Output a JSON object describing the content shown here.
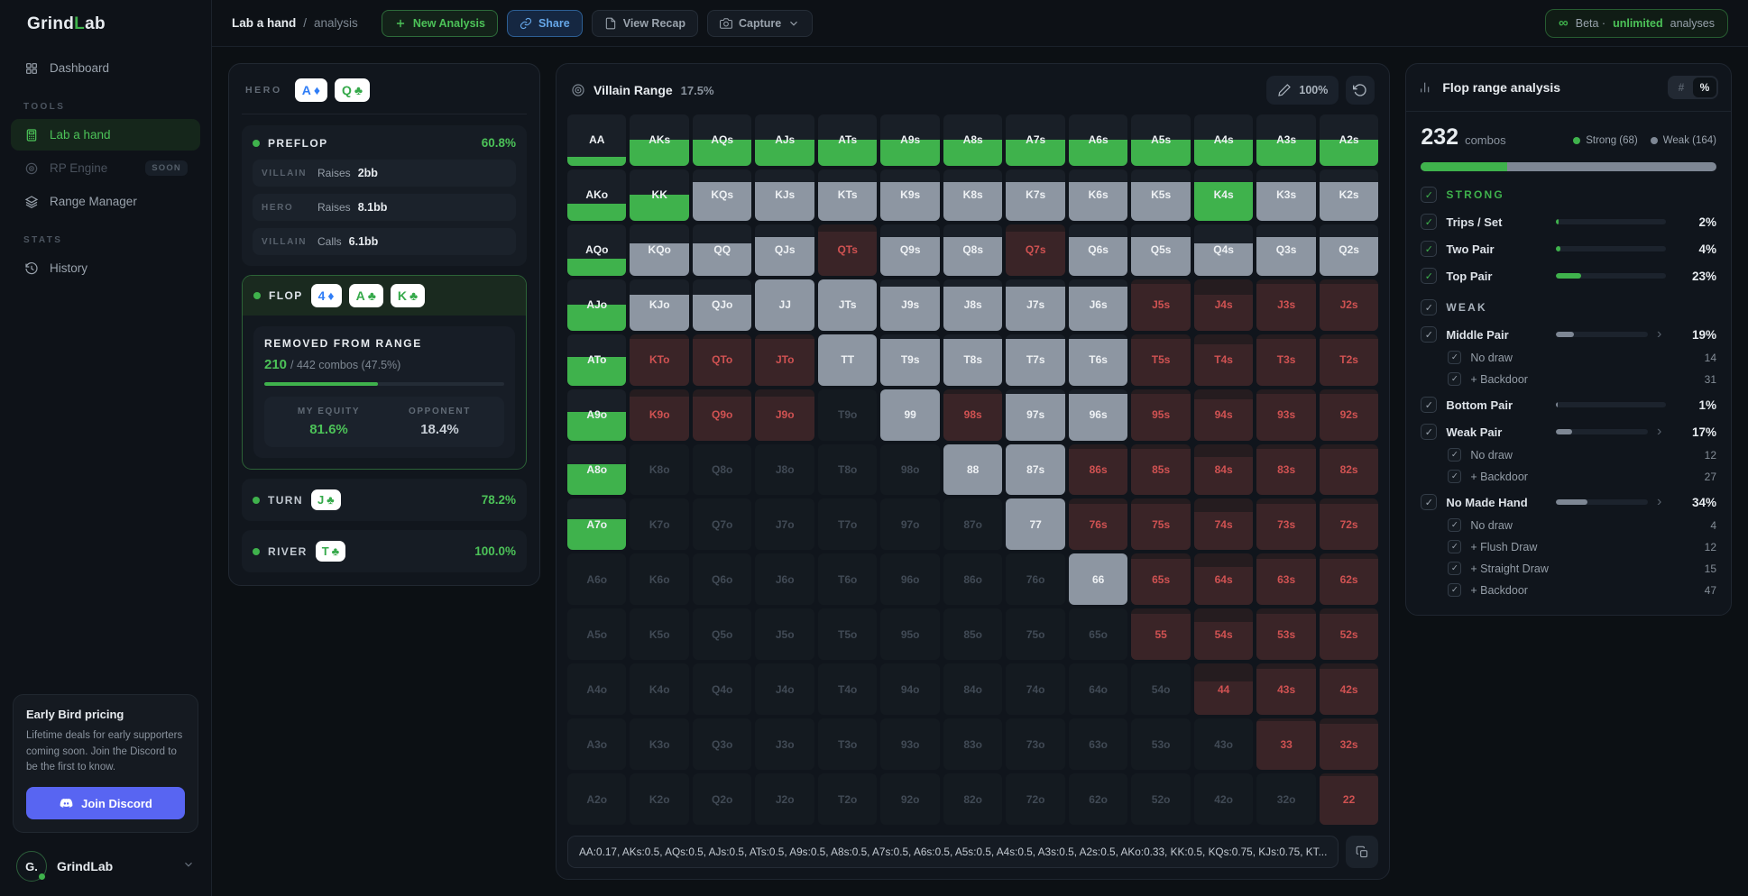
{
  "colors": {
    "accent_green": "#3fb24c",
    "weak_gray": "#7e8794",
    "removed_red": "#d05252",
    "suit_blue": "#2f7df6",
    "suit_green": "#35a94a",
    "discord": "#5865f2"
  },
  "topbar": {
    "logo": {
      "part1": "Grind",
      "part2": "L",
      "part3": "ab"
    },
    "breadcrumb": {
      "current": "Lab a hand",
      "sep": "/",
      "page": "analysis"
    },
    "new_analysis_label": "New Analysis",
    "share_label": "Share",
    "view_recap_label": "View Recap",
    "capture_label": "Capture",
    "beta_badge": {
      "infinity": "∞",
      "prefix": "Beta ·",
      "highlight": "unlimited",
      "suffix": "analyses"
    }
  },
  "sidebar": {
    "dashboard_label": "Dashboard",
    "sections": [
      {
        "title": "TOOLS",
        "items": [
          {
            "label": "Lab a hand",
            "icon": "calculator-icon",
            "active": true
          },
          {
            "label": "RP Engine",
            "icon": "target-icon",
            "disabled": true,
            "badge": "SOON"
          },
          {
            "label": "Range Manager",
            "icon": "layers-icon"
          }
        ]
      },
      {
        "title": "STATS",
        "items": [
          {
            "label": "History",
            "icon": "history-icon"
          }
        ]
      }
    ],
    "promo": {
      "title": "Early Bird pricing",
      "body": "Lifetime deals for early supporters coming soon. Join the Discord to be the first to know.",
      "cta": "Join Discord"
    },
    "footer": {
      "brand": "GrindLab",
      "avatar_text": "G."
    }
  },
  "hand_panel": {
    "hero_label": "HERO",
    "hero_cards": [
      {
        "rank": "A",
        "suit": "♦",
        "color": "#2f7df6"
      },
      {
        "rank": "Q",
        "suit": "♣",
        "color": "#35a94a"
      }
    ],
    "stages": {
      "preflop": {
        "label": "PREFLOP",
        "value": "60.8%",
        "actions": [
          {
            "who": "VILLAIN",
            "verb": "Raises",
            "amount": "2bb"
          },
          {
            "who": "HERO",
            "verb": "Raises",
            "amount": "8.1bb"
          },
          {
            "who": "VILLAIN",
            "verb": "Calls",
            "amount": "6.1bb"
          }
        ]
      },
      "flop": {
        "label": "FLOP",
        "cards": [
          {
            "rank": "4",
            "suit": "♦",
            "color": "#2f7df6"
          },
          {
            "rank": "A",
            "suit": "♣",
            "color": "#35a94a"
          },
          {
            "rank": "K",
            "suit": "♣",
            "color": "#35a94a"
          }
        ],
        "removed_title": "REMOVED FROM RANGE",
        "removed_count": "210",
        "removed_detail": "/ 442 combos (47.5%)",
        "removed_pct": 47.5,
        "my_equity_label": "MY EQUITY",
        "my_equity": "81.6%",
        "opponent_label": "OPPONENT",
        "opponent_equity": "18.4%"
      },
      "turn": {
        "label": "TURN",
        "card": {
          "rank": "J",
          "suit": "♣",
          "color": "#35a94a"
        },
        "value": "78.2%"
      },
      "river": {
        "label": "RIVER",
        "card": {
          "rank": "T",
          "suit": "♣",
          "color": "#35a94a"
        },
        "value": "100.0%"
      }
    }
  },
  "villain_range": {
    "title": "Villain Range",
    "percent": "17.5%",
    "zoom": "100%",
    "weights_string": "AA:0.17, AKs:0.5, AQs:0.5, AJs:0.5, ATs:0.5, A9s:0.5, A8s:0.5, A7s:0.5, A6s:0.5, A5s:0.5, A4s:0.5, A3s:0.5, A2s:0.5, AKo:0.33, KK:0.5, KQs:0.75, KJs:0.75, KT...",
    "matrix": [
      [
        [
          "AA",
          "g",
          0.17
        ],
        [
          "AKs",
          "g",
          0.5
        ],
        [
          "AQs",
          "g",
          0.5
        ],
        [
          "AJs",
          "g",
          0.5
        ],
        [
          "ATs",
          "g",
          0.5
        ],
        [
          "A9s",
          "g",
          0.5
        ],
        [
          "A8s",
          "g",
          0.5
        ],
        [
          "A7s",
          "g",
          0.5
        ],
        [
          "A6s",
          "g",
          0.5
        ],
        [
          "A5s",
          "g",
          0.5
        ],
        [
          "A4s",
          "g",
          0.5
        ],
        [
          "A3s",
          "g",
          0.5
        ],
        [
          "A2s",
          "g",
          0.5
        ]
      ],
      [
        [
          "AKo",
          "g",
          0.33
        ],
        [
          "KK",
          "g",
          0.5
        ],
        [
          "KQs",
          "w",
          0.75
        ],
        [
          "KJs",
          "w",
          0.75
        ],
        [
          "KTs",
          "w",
          0.75
        ],
        [
          "K9s",
          "w",
          0.75
        ],
        [
          "K8s",
          "w",
          0.75
        ],
        [
          "K7s",
          "w",
          0.75
        ],
        [
          "K6s",
          "w",
          0.75
        ],
        [
          "K5s",
          "w",
          0.75
        ],
        [
          "K4s",
          "g",
          0.75
        ],
        [
          "K3s",
          "w",
          0.75
        ],
        [
          "K2s",
          "w",
          0.75
        ]
      ],
      [
        [
          "AQo",
          "g",
          0.33
        ],
        [
          "KQo",
          "w",
          0.62
        ],
        [
          "QQ",
          "w",
          0.62
        ],
        [
          "QJs",
          "w",
          0.75
        ],
        [
          "QTs",
          "r",
          0.85
        ],
        [
          "Q9s",
          "w",
          0.75
        ],
        [
          "Q8s",
          "w",
          0.75
        ],
        [
          "Q7s",
          "r",
          0.85
        ],
        [
          "Q6s",
          "w",
          0.75
        ],
        [
          "Q5s",
          "w",
          0.75
        ],
        [
          "Q4s",
          "w",
          0.62
        ],
        [
          "Q3s",
          "w",
          0.75
        ],
        [
          "Q2s",
          "w",
          0.75
        ]
      ],
      [
        [
          "AJo",
          "g",
          0.5
        ],
        [
          "KJo",
          "w",
          0.7
        ],
        [
          "QJo",
          "w",
          0.7
        ],
        [
          "JJ",
          "w",
          1
        ],
        [
          "JTs",
          "w",
          1
        ],
        [
          "J9s",
          "w",
          0.85
        ],
        [
          "J8s",
          "w",
          0.85
        ],
        [
          "J7s",
          "w",
          0.85
        ],
        [
          "J6s",
          "w",
          0.85
        ],
        [
          "J5s",
          "r",
          0.9
        ],
        [
          "J4s",
          "r",
          0.7
        ],
        [
          "J3s",
          "r",
          0.9
        ],
        [
          "J2s",
          "r",
          0.9
        ]
      ],
      [
        [
          "ATo",
          "g",
          0.55
        ],
        [
          "KTo",
          "r",
          0.9
        ],
        [
          "QTo",
          "r",
          0.9
        ],
        [
          "JTo",
          "r",
          0.9
        ],
        [
          "TT",
          "w",
          1
        ],
        [
          "T9s",
          "w",
          0.9
        ],
        [
          "T8s",
          "w",
          0.9
        ],
        [
          "T7s",
          "w",
          0.9
        ],
        [
          "T6s",
          "w",
          0.9
        ],
        [
          "T5s",
          "r",
          0.9
        ],
        [
          "T4s",
          "r",
          0.8
        ],
        [
          "T3s",
          "r",
          0.9
        ],
        [
          "T2s",
          "r",
          0.9
        ]
      ],
      [
        [
          "A9o",
          "g",
          0.55
        ],
        [
          "K9o",
          "r",
          0.85
        ],
        [
          "Q9o",
          "r",
          0.85
        ],
        [
          "J9o",
          "r",
          0.85
        ],
        [
          "T9o",
          "n",
          0
        ],
        [
          "99",
          "w",
          1
        ],
        [
          "98s",
          "r",
          0.9
        ],
        [
          "97s",
          "w",
          0.9
        ],
        [
          "96s",
          "w",
          0.9
        ],
        [
          "95s",
          "r",
          0.9
        ],
        [
          "94s",
          "r",
          0.8
        ],
        [
          "93s",
          "r",
          0.9
        ],
        [
          "92s",
          "r",
          0.9
        ]
      ],
      [
        [
          "A8o",
          "g",
          0.6
        ],
        [
          "K8o",
          "n",
          0
        ],
        [
          "Q8o",
          "n",
          0
        ],
        [
          "J8o",
          "n",
          0
        ],
        [
          "T8o",
          "n",
          0
        ],
        [
          "98o",
          "n",
          0
        ],
        [
          "88",
          "w",
          1
        ],
        [
          "87s",
          "w",
          1
        ],
        [
          "86s",
          "r",
          0.9
        ],
        [
          "85s",
          "r",
          0.9
        ],
        [
          "84s",
          "r",
          0.75
        ],
        [
          "83s",
          "r",
          0.9
        ],
        [
          "82s",
          "r",
          0.9
        ]
      ],
      [
        [
          "A7o",
          "g",
          0.6
        ],
        [
          "K7o",
          "n",
          0
        ],
        [
          "Q7o",
          "n",
          0
        ],
        [
          "J7o",
          "n",
          0
        ],
        [
          "T7o",
          "n",
          0
        ],
        [
          "97o",
          "n",
          0
        ],
        [
          "87o",
          "n",
          0
        ],
        [
          "77",
          "w",
          1
        ],
        [
          "76s",
          "r",
          0.9
        ],
        [
          "75s",
          "r",
          0.9
        ],
        [
          "74s",
          "r",
          0.75
        ],
        [
          "73s",
          "r",
          0.9
        ],
        [
          "72s",
          "r",
          0.9
        ]
      ],
      [
        [
          "A6o",
          "n",
          0
        ],
        [
          "K6o",
          "n",
          0
        ],
        [
          "Q6o",
          "n",
          0
        ],
        [
          "J6o",
          "n",
          0
        ],
        [
          "T6o",
          "n",
          0
        ],
        [
          "96o",
          "n",
          0
        ],
        [
          "86o",
          "n",
          0
        ],
        [
          "76o",
          "n",
          0
        ],
        [
          "66",
          "w",
          1
        ],
        [
          "65s",
          "r",
          0.9
        ],
        [
          "64s",
          "r",
          0.75
        ],
        [
          "63s",
          "r",
          0.9
        ],
        [
          "62s",
          "r",
          0.9
        ]
      ],
      [
        [
          "A5o",
          "n",
          0
        ],
        [
          "K5o",
          "n",
          0
        ],
        [
          "Q5o",
          "n",
          0
        ],
        [
          "J5o",
          "n",
          0
        ],
        [
          "T5o",
          "n",
          0
        ],
        [
          "95o",
          "n",
          0
        ],
        [
          "85o",
          "n",
          0
        ],
        [
          "75o",
          "n",
          0
        ],
        [
          "65o",
          "n",
          0
        ],
        [
          "55",
          "r",
          0.9
        ],
        [
          "54s",
          "r",
          0.75
        ],
        [
          "53s",
          "r",
          0.9
        ],
        [
          "52s",
          "r",
          0.9
        ]
      ],
      [
        [
          "A4o",
          "n",
          0
        ],
        [
          "K4o",
          "n",
          0
        ],
        [
          "Q4o",
          "n",
          0
        ],
        [
          "J4o",
          "n",
          0
        ],
        [
          "T4o",
          "n",
          0
        ],
        [
          "94o",
          "n",
          0
        ],
        [
          "84o",
          "n",
          0
        ],
        [
          "74o",
          "n",
          0
        ],
        [
          "64o",
          "n",
          0
        ],
        [
          "54o",
          "n",
          0
        ],
        [
          "44",
          "r",
          0.65
        ],
        [
          "43s",
          "r",
          0.9
        ],
        [
          "42s",
          "r",
          0.9
        ]
      ],
      [
        [
          "A3o",
          "n",
          0
        ],
        [
          "K3o",
          "n",
          0
        ],
        [
          "Q3o",
          "n",
          0
        ],
        [
          "J3o",
          "n",
          0
        ],
        [
          "T3o",
          "n",
          0
        ],
        [
          "93o",
          "n",
          0
        ],
        [
          "83o",
          "n",
          0
        ],
        [
          "73o",
          "n",
          0
        ],
        [
          "63o",
          "n",
          0
        ],
        [
          "53o",
          "n",
          0
        ],
        [
          "43o",
          "n",
          0
        ],
        [
          "33",
          "r",
          0.95
        ],
        [
          "32s",
          "r",
          0.9
        ]
      ],
      [
        [
          "A2o",
          "n",
          0
        ],
        [
          "K2o",
          "n",
          0
        ],
        [
          "Q2o",
          "n",
          0
        ],
        [
          "J2o",
          "n",
          0
        ],
        [
          "T2o",
          "n",
          0
        ],
        [
          "92o",
          "n",
          0
        ],
        [
          "82o",
          "n",
          0
        ],
        [
          "72o",
          "n",
          0
        ],
        [
          "62o",
          "n",
          0
        ],
        [
          "52o",
          "n",
          0
        ],
        [
          "42o",
          "n",
          0
        ],
        [
          "32o",
          "n",
          0
        ],
        [
          "22",
          "r",
          0.95
        ]
      ]
    ]
  },
  "analysis_panel": {
    "title": "Flop range analysis",
    "toggle": {
      "count": "#",
      "percent": "%"
    },
    "combos": "232",
    "combos_label": "combos",
    "strong_pct": 29.3,
    "legend": [
      {
        "label": "Strong (68)",
        "color": "#3fb24c"
      },
      {
        "label": "Weak (164)",
        "color": "#7e8794"
      }
    ],
    "sections": [
      {
        "title": "STRONG",
        "color": "green",
        "items": [
          {
            "label": "Trips / Set",
            "pct": 2,
            "value": "2%"
          },
          {
            "label": "Two Pair",
            "pct": 4,
            "value": "4%"
          },
          {
            "label": "Top Pair",
            "pct": 23,
            "value": "23%"
          }
        ]
      },
      {
        "title": "WEAK",
        "color": "gray",
        "items": [
          {
            "label": "Middle Pair",
            "pct": 19,
            "value": "19%",
            "expandable": true,
            "subs": [
              {
                "label": "No draw",
                "value": "14"
              },
              {
                "label": "+ Backdoor",
                "value": "31"
              }
            ]
          },
          {
            "label": "Bottom Pair",
            "pct": 1,
            "value": "1%"
          },
          {
            "label": "Weak Pair",
            "pct": 17,
            "value": "17%",
            "expandable": true,
            "subs": [
              {
                "label": "No draw",
                "value": "12"
              },
              {
                "label": "+ Backdoor",
                "value": "27"
              }
            ]
          },
          {
            "label": "No Made Hand",
            "pct": 34,
            "value": "34%",
            "expandable": true,
            "subs": [
              {
                "label": "No draw",
                "value": "4"
              },
              {
                "label": "+ Flush Draw",
                "value": "12"
              },
              {
                "label": "+ Straight Draw",
                "value": "15"
              },
              {
                "label": "+ Backdoor",
                "value": "47"
              }
            ]
          }
        ]
      }
    ]
  }
}
